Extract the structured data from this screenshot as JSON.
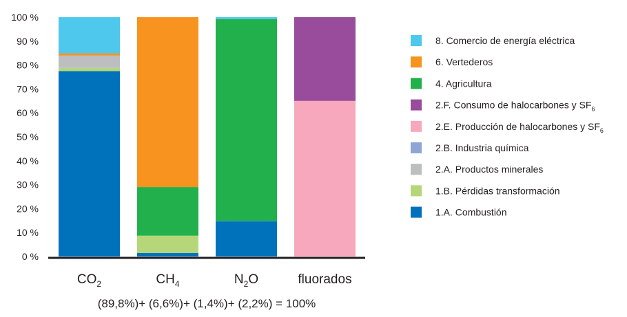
{
  "chart_data": {
    "type": "bar",
    "stacked": true,
    "title": "",
    "xlabel": "",
    "ylabel": "",
    "ylim": [
      0,
      100
    ],
    "ytick_labels": [
      "0 %",
      "10 %",
      "20 %",
      "30 %",
      "40 %",
      "50 %",
      "60 %",
      "70 %",
      "80 %",
      "90 %",
      "100 %"
    ],
    "grid": false,
    "legend_position": "right",
    "categories": [
      {
        "base": "CO",
        "sub": "2",
        "tail": ""
      },
      {
        "base": "CH",
        "sub": "4",
        "tail": ""
      },
      {
        "base": "N",
        "sub": "2",
        "tail": "O"
      },
      {
        "base": "fluorados",
        "sub": "",
        "tail": ""
      }
    ],
    "series": [
      {
        "name": "1.A. Combustión",
        "name_sub": "",
        "color": "#0072bc",
        "values": [
          77.5,
          1.5,
          14.8,
          0
        ]
      },
      {
        "name": "1.B. Pérdidas transformación",
        "name_sub": "",
        "color": "#b5d779",
        "values": [
          1.3,
          7.2,
          0,
          0
        ]
      },
      {
        "name": "2.A. Productos minerales",
        "name_sub": "",
        "color": "#bcbec0",
        "values": [
          5.0,
          0,
          0,
          0
        ]
      },
      {
        "name": "2.B. Industria química",
        "name_sub": "",
        "color": "#8fa5d6",
        "values": [
          0.2,
          0,
          0.1,
          0
        ]
      },
      {
        "name": "2.E. Producción de halocarbones y SF",
        "name_sub": "6",
        "color": "#f7a8bc",
        "values": [
          0,
          0,
          0,
          65
        ]
      },
      {
        "name": "2.F. Consumo de halocarbones y SF",
        "name_sub": "6",
        "color": "#994c9c",
        "values": [
          0,
          0,
          0,
          35
        ]
      },
      {
        "name": "4. Agricultura",
        "name_sub": "",
        "color": "#21b04b",
        "values": [
          0,
          20.3,
          84.3,
          0
        ]
      },
      {
        "name": "6. Vertederos",
        "name_sub": "",
        "color": "#f7931e",
        "values": [
          0.9,
          71.0,
          0,
          0
        ]
      },
      {
        "name": "8. Comercio de energía eléctrica",
        "name_sub": "",
        "color": "#4ec8ec",
        "values": [
          15.1,
          0,
          0.8,
          0
        ]
      }
    ],
    "annotation": "(89,8%)+ (6,6%)+ (1,4%)+ (2,2%) = 100%"
  }
}
